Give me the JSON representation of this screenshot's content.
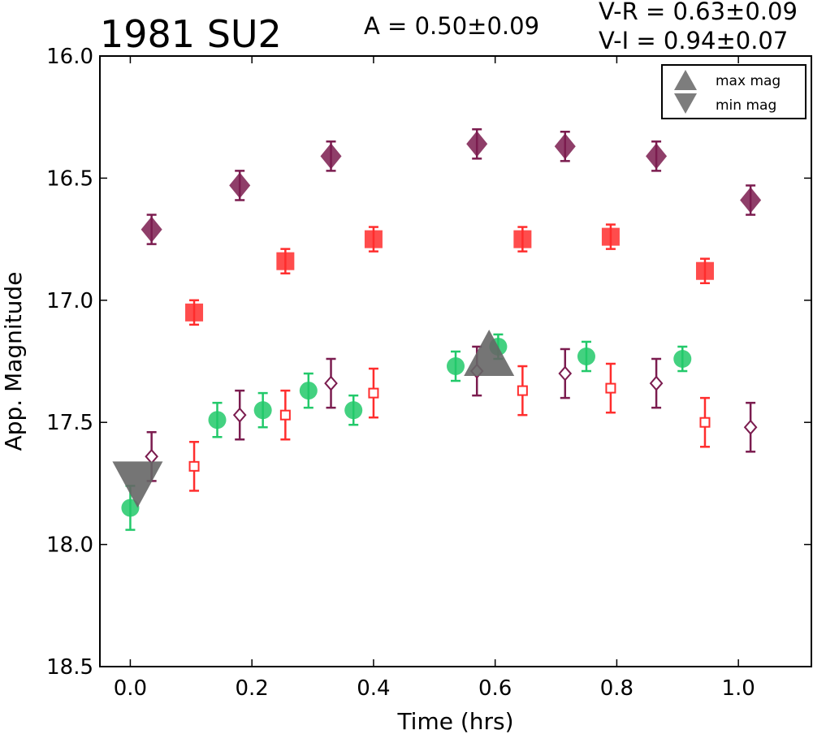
{
  "chart_data": {
    "type": "scatter",
    "title": "1981 SU2",
    "annotations": {
      "amplitude": "A  = 0.50±0.09",
      "vr": "V-R = 0.63±0.09",
      "vi": "V-I  = 0.94±0.07"
    },
    "xlabel": "Time (hrs)",
    "ylabel": "App. Magnitude",
    "xlim": [
      -0.05,
      1.12
    ],
    "ylim": [
      18.5,
      16.0
    ],
    "y_inverted": true,
    "xticks": [
      0.0,
      0.2,
      0.4,
      0.6,
      0.8,
      1.0
    ],
    "xtick_labels": [
      "0.0",
      "0.2",
      "0.4",
      "0.6",
      "0.8",
      "1.0"
    ],
    "yticks": [
      16.0,
      16.5,
      17.0,
      17.5,
      18.0,
      18.5
    ],
    "ytick_labels": [
      "16.0",
      "16.5",
      "17.0",
      "17.5",
      "18.0",
      "18.5"
    ],
    "grid": false,
    "legend_position": "top-right",
    "legend": [
      {
        "label": "max mag",
        "marker": "triangle-up"
      },
      {
        "label": "min mag",
        "marker": "triangle-down"
      }
    ],
    "series": [
      {
        "marker": "diamond-filled",
        "color": "#7b1c4f",
        "alpha": 0.85,
        "x": [
          0.035,
          0.18,
          0.33,
          0.57,
          0.715,
          0.865,
          1.02
        ],
        "y": [
          16.71,
          16.53,
          16.41,
          16.36,
          16.37,
          16.41,
          16.59
        ],
        "err": [
          0.06,
          0.06,
          0.06,
          0.06,
          0.06,
          0.06,
          0.06
        ]
      },
      {
        "marker": "square-filled",
        "color": "#ff2d2d",
        "alpha": 0.85,
        "x": [
          0.105,
          0.255,
          0.4,
          0.645,
          0.79,
          0.945
        ],
        "y": [
          17.05,
          16.84,
          16.75,
          16.75,
          16.74,
          16.88
        ],
        "err": [
          0.05,
          0.05,
          0.05,
          0.05,
          0.05,
          0.05
        ]
      },
      {
        "marker": "circle-filled",
        "color": "#22c96a",
        "alpha": 0.85,
        "x": [
          0.0,
          0.143,
          0.218,
          0.293,
          0.367,
          0.535,
          0.605,
          0.75,
          0.908
        ],
        "y": [
          17.85,
          17.49,
          17.45,
          17.37,
          17.45,
          17.27,
          17.19,
          17.23,
          17.24
        ],
        "err": [
          0.09,
          0.07,
          0.07,
          0.07,
          0.06,
          0.06,
          0.05,
          0.06,
          0.05
        ]
      },
      {
        "marker": "diamond-open",
        "color": "#7b1c4f",
        "alpha": 1,
        "x": [
          0.035,
          0.18,
          0.33,
          0.57,
          0.715,
          0.865,
          1.02
        ],
        "y": [
          17.64,
          17.47,
          17.34,
          17.29,
          17.3,
          17.34,
          17.52
        ],
        "err": [
          0.1,
          0.1,
          0.1,
          0.1,
          0.1,
          0.1,
          0.1
        ]
      },
      {
        "marker": "square-open",
        "color": "#ff2d2d",
        "alpha": 1,
        "x": [
          0.105,
          0.255,
          0.4,
          0.645,
          0.79,
          0.945
        ],
        "y": [
          17.68,
          17.47,
          17.38,
          17.37,
          17.36,
          17.5
        ],
        "err": [
          0.1,
          0.1,
          0.1,
          0.1,
          0.1,
          0.1
        ]
      }
    ],
    "extrema": [
      {
        "kind": "max",
        "marker": "triangle-up",
        "color": "#666666",
        "x": 0.59,
        "y": 17.24
      },
      {
        "kind": "min",
        "marker": "triangle-down",
        "color": "#666666",
        "x": 0.012,
        "y": 17.73
      }
    ]
  }
}
